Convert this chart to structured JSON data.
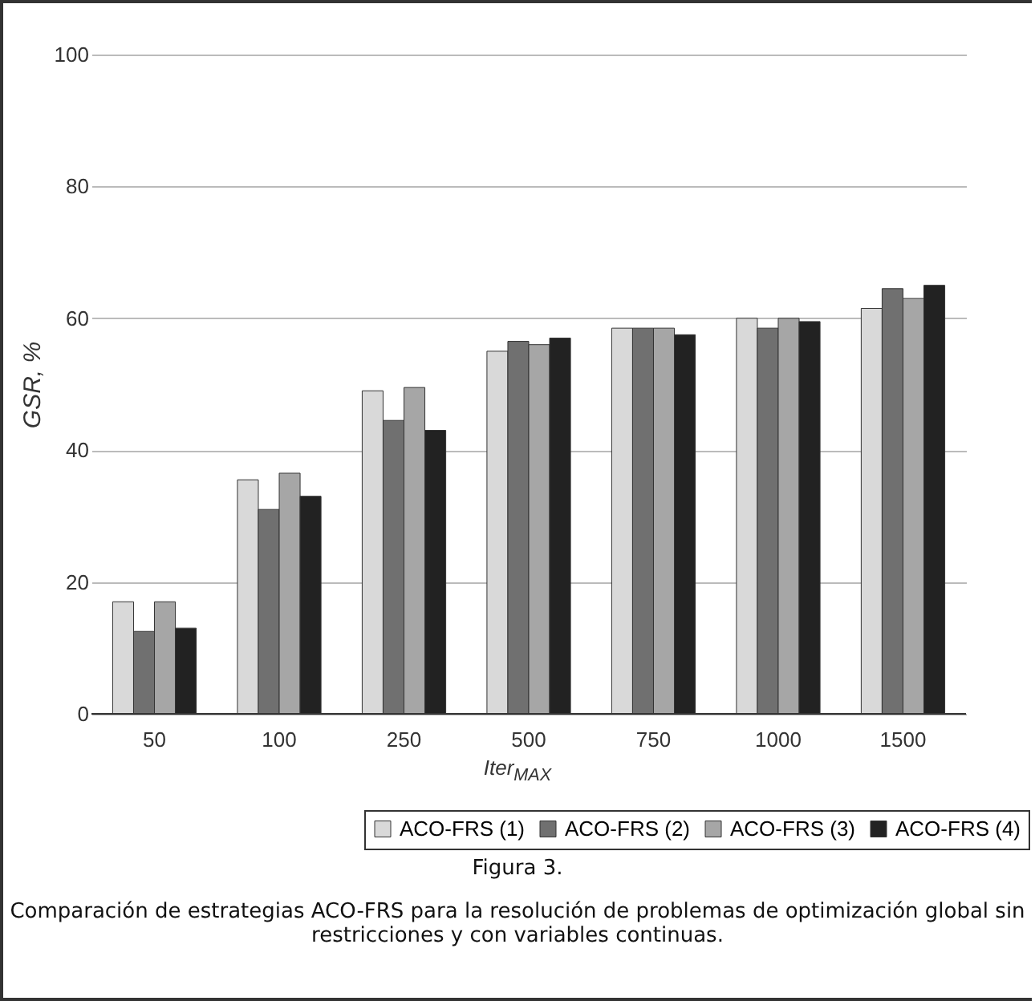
{
  "chart_data": {
    "type": "bar",
    "xlabel": "Iter$_{MAX}$",
    "ylabel": "GSR, %",
    "categories": [
      "50",
      "100",
      "250",
      "500",
      "750",
      "1000",
      "1500"
    ],
    "series": [
      {
        "name": "ACO-FRS (1)",
        "color": "#d9d9d9",
        "values": [
          17,
          35.5,
          49,
          55,
          58.5,
          60,
          61.5
        ]
      },
      {
        "name": "ACO-FRS (2)",
        "color": "#707070",
        "values": [
          12.5,
          31,
          44.5,
          56.5,
          58.5,
          58.5,
          64.5
        ]
      },
      {
        "name": "ACO-FRS (3)",
        "color": "#a6a6a6",
        "values": [
          17,
          36.5,
          49.5,
          56,
          58.5,
          60,
          63
        ]
      },
      {
        "name": "ACO-FRS (4)",
        "color": "#222222",
        "values": [
          13,
          33,
          43,
          57,
          57.5,
          59.5,
          65
        ]
      }
    ],
    "ylim": [
      0,
      100
    ],
    "yticks": [
      0,
      20,
      40,
      60,
      80,
      100
    ],
    "grid": "y",
    "legend": "bottom",
    "annotations": [
      "Figura 3.",
      "Comparación de estrategias ACO-FRS para la resolución de problemas de optimización global sin restricciones y con variables continuas."
    ]
  }
}
